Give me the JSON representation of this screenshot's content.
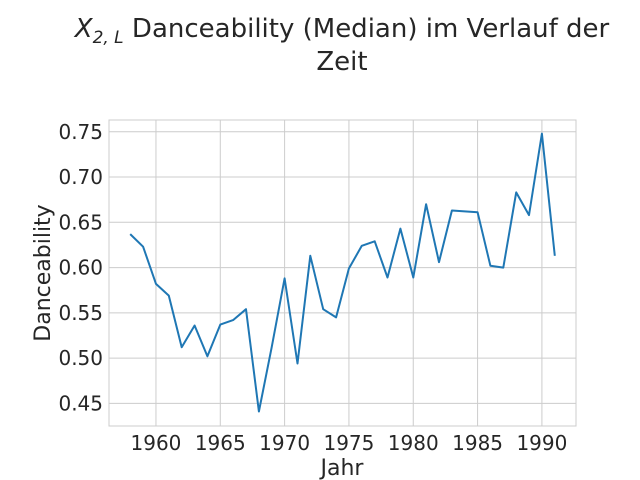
{
  "chart_data": {
    "type": "line",
    "title_var": "X",
    "title_sub": "2, L",
    "title_line1_rest": " Danceability (Median) im Verlauf der",
    "title_line2": "Zeit",
    "xlabel": "Jahr",
    "ylabel": "Danceability",
    "xlim": [
      1956.35,
      1992.65
    ],
    "ylim": [
      0.425,
      0.763
    ],
    "x_ticks": [
      1960,
      1965,
      1970,
      1975,
      1980,
      1985,
      1990
    ],
    "y_ticks": [
      0.45,
      0.5,
      0.55,
      0.6,
      0.65,
      0.7,
      0.75
    ],
    "grid": true,
    "line_color": "#1f77b4",
    "series": [
      {
        "x": [
          1958,
          1959,
          1960,
          1961,
          1962,
          1963,
          1964,
          1965,
          1966,
          1967,
          1968,
          1969,
          1970,
          1971,
          1972,
          1973,
          1974,
          1975,
          1976,
          1977,
          1978,
          1979,
          1980,
          1981,
          1982,
          1983,
          1984,
          1985,
          1986,
          1987,
          1988,
          1989,
          1990,
          1991
        ],
        "values": [
          0.637,
          0.623,
          0.582,
          0.569,
          0.512,
          0.536,
          0.502,
          0.537,
          0.542,
          0.554,
          0.441,
          0.512,
          0.588,
          0.494,
          0.613,
          0.554,
          0.545,
          0.599,
          0.624,
          0.629,
          0.589,
          0.643,
          0.589,
          0.67,
          0.606,
          0.663,
          0.662,
          0.661,
          0.602,
          0.6,
          0.683,
          0.658,
          0.748,
          0.613
        ]
      }
    ]
  }
}
